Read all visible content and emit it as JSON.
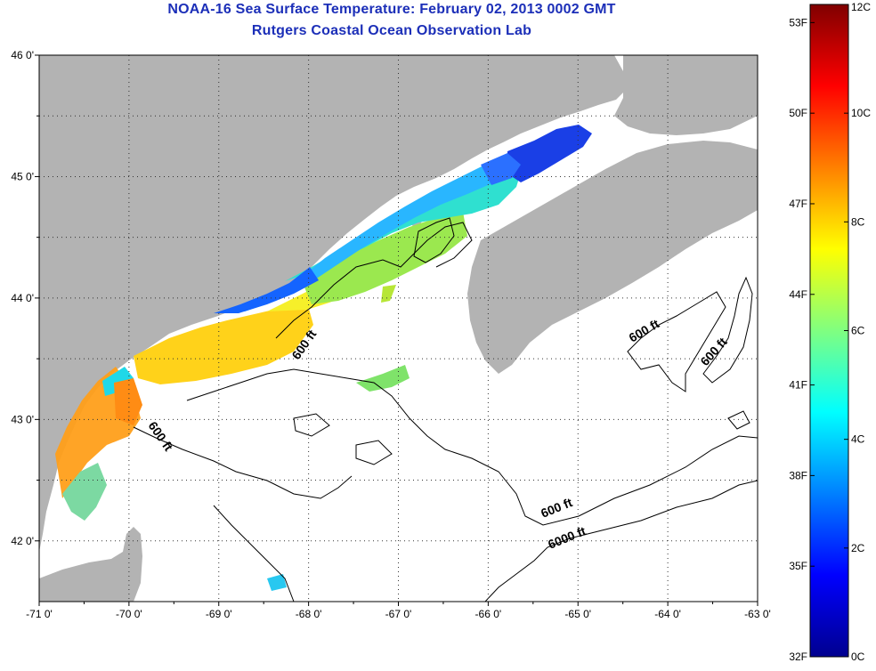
{
  "header": {
    "title": "NOAA-16 Sea Surface Temperature:  February 02, 2013 0002 GMT",
    "subtitle": "Rutgers Coastal Ocean Observation Lab"
  },
  "map": {
    "lon_range": [
      -71.0,
      -63.0
    ],
    "lat_range": [
      41.5,
      46.0
    ],
    "lon_tick_labels": [
      "-71 0'",
      "-70 0'",
      "-69 0'",
      "-68 0'",
      "-67 0'",
      "-66 0'",
      "-65 0'",
      "-64 0'",
      "-63 0'"
    ],
    "lat_tick_labels": [
      "46 0'",
      "45 0'",
      "44 0'",
      "43 0'",
      "42 0'"
    ],
    "grid": "dotted",
    "land_color": "#b3b3b3",
    "ocean_no_data_color": "#ffffff",
    "contours": [
      {
        "label": "600 ft"
      },
      {
        "label": "600 ft"
      },
      {
        "label": "600 ft"
      },
      {
        "label": "600 ft"
      },
      {
        "label": "600 ft"
      },
      {
        "label": "6000 ft"
      }
    ]
  },
  "colorbar": {
    "unit_left": "F",
    "unit_right": "C",
    "fahrenheit_labels": [
      "53F",
      "50F",
      "47F",
      "44F",
      "41F",
      "38F",
      "35F",
      "32F"
    ],
    "celsius_labels": [
      "12C",
      "10C",
      "8C",
      "6C",
      "4C",
      "2C",
      "0C"
    ],
    "range_c": [
      0,
      12
    ],
    "colormap": [
      "#00008f",
      "#0000ff",
      "#0080ff",
      "#00ffff",
      "#80ff80",
      "#ffff00",
      "#ff8000",
      "#ff0000",
      "#800000"
    ]
  }
}
